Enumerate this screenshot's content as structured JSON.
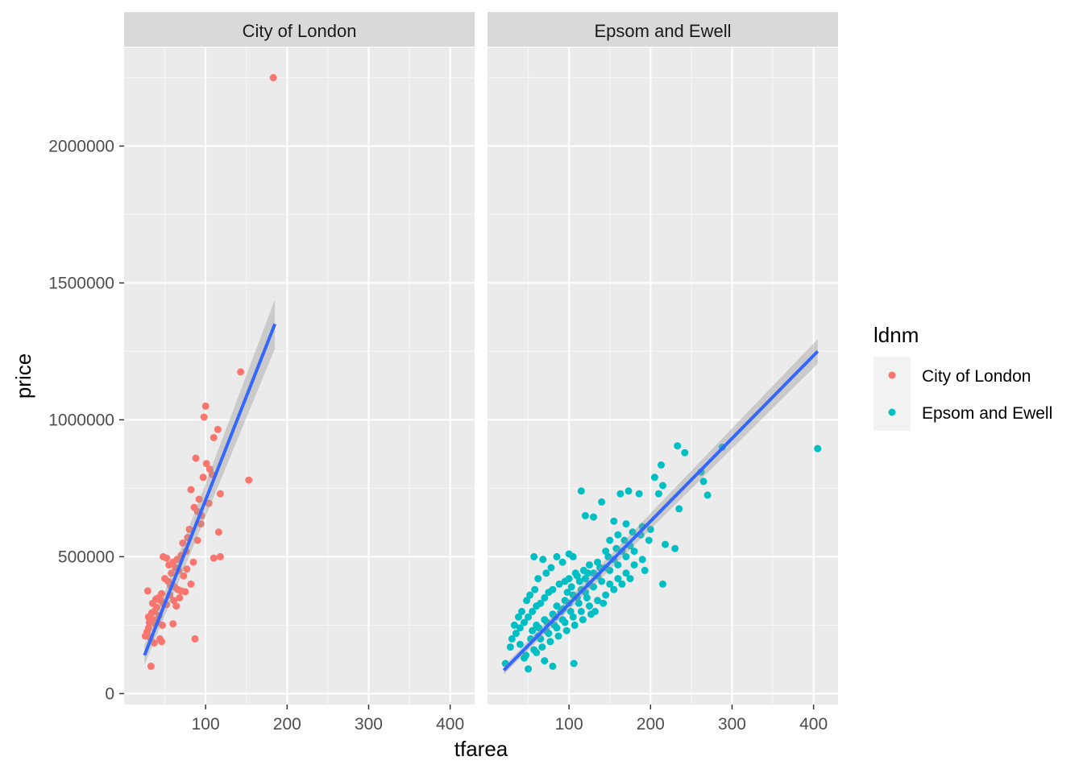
{
  "chart_data": {
    "type": "scatter",
    "facet_by": "ldnm",
    "xlabel": "tfarea",
    "ylabel": "price",
    "x_ticks": [
      100,
      200,
      300,
      400
    ],
    "y_ticks": [
      0,
      500000,
      1000000,
      1500000,
      2000000
    ],
    "x_tick_labels": [
      "100",
      "200",
      "300",
      "400"
    ],
    "y_tick_labels": [
      "0",
      "500000",
      "1000000",
      "1500000",
      "2000000"
    ],
    "xlim": [
      0,
      430
    ],
    "ylim": [
      -40000,
      2360000
    ],
    "grid": true,
    "background": "#ebebeb",
    "legend": {
      "title": "ldnm",
      "position": "right",
      "entries": [
        "City of London",
        "Epsom and Ewell"
      ]
    },
    "panels": [
      {
        "strip_label": "City of London",
        "color": "#f8766d",
        "smooth": {
          "method": "lm",
          "color": "#3366ff",
          "x": [
            25,
            185
          ],
          "y": [
            140000,
            1350000
          ],
          "se_halfwidth": [
            35000,
            90000
          ]
        },
        "points": [
          [
            183,
            2250000
          ],
          [
            143,
            1175000
          ],
          [
            100,
            1050000
          ],
          [
            98,
            1010000
          ],
          [
            115,
            965000
          ],
          [
            110,
            935000
          ],
          [
            153,
            780000
          ],
          [
            88,
            860000
          ],
          [
            101,
            840000
          ],
          [
            105,
            820000
          ],
          [
            108,
            800000
          ],
          [
            97,
            790000
          ],
          [
            82,
            745000
          ],
          [
            118,
            730000
          ],
          [
            92,
            710000
          ],
          [
            104,
            695000
          ],
          [
            86,
            680000
          ],
          [
            90,
            665000
          ],
          [
            116,
            590000
          ],
          [
            110,
            495000
          ],
          [
            118,
            500000
          ],
          [
            95,
            650000
          ],
          [
            80,
            600000
          ],
          [
            78,
            570000
          ],
          [
            72,
            550000
          ],
          [
            76,
            520000
          ],
          [
            70,
            505000
          ],
          [
            65,
            490000
          ],
          [
            60,
            480000
          ],
          [
            55,
            470000
          ],
          [
            48,
            500000
          ],
          [
            52,
            495000
          ],
          [
            63,
            460000
          ],
          [
            67,
            450000
          ],
          [
            58,
            440000
          ],
          [
            50,
            420000
          ],
          [
            54,
            410000
          ],
          [
            57,
            395000
          ],
          [
            62,
            390000
          ],
          [
            66,
            380000
          ],
          [
            70,
            375000
          ],
          [
            75,
            372000
          ],
          [
            82,
            400000
          ],
          [
            46,
            365000
          ],
          [
            42,
            350000
          ],
          [
            45,
            340000
          ],
          [
            48,
            330000
          ],
          [
            52,
            325000
          ],
          [
            40,
            315000
          ],
          [
            37,
            300000
          ],
          [
            34,
            295000
          ],
          [
            30,
            280000
          ],
          [
            36,
            270000
          ],
          [
            41,
            260000
          ],
          [
            47,
            250000
          ],
          [
            30,
            240000
          ],
          [
            28,
            225000
          ],
          [
            26,
            210000
          ],
          [
            32,
            205000
          ],
          [
            44,
            200000
          ],
          [
            46,
            190000
          ],
          [
            37,
            185000
          ],
          [
            87,
            200000
          ],
          [
            60,
            255000
          ],
          [
            33,
            100000
          ],
          [
            29,
            375000
          ],
          [
            35,
            330000
          ],
          [
            39,
            345000
          ],
          [
            56,
            360000
          ],
          [
            61,
            340000
          ],
          [
            64,
            320000
          ],
          [
            68,
            350000
          ],
          [
            73,
            430000
          ],
          [
            77,
            455000
          ],
          [
            85,
            480000
          ],
          [
            90,
            560000
          ],
          [
            94,
            620000
          ],
          [
            43,
            285000
          ],
          [
            38,
            255000
          ],
          [
            31,
            260000
          ]
        ]
      },
      {
        "strip_label": "Epsom and Ewell",
        "color": "#00bfc4",
        "smooth": {
          "method": "lm",
          "color": "#3366ff",
          "x": [
            20,
            405
          ],
          "y": [
            85000,
            1250000
          ],
          "se_halfwidth": [
            15000,
            45000
          ]
        },
        "points": [
          [
            405,
            895000
          ],
          [
            288,
            900000
          ],
          [
            233,
            905000
          ],
          [
            242,
            880000
          ],
          [
            265,
            775000
          ],
          [
            270,
            725000
          ],
          [
            262,
            810000
          ],
          [
            213,
            835000
          ],
          [
            205,
            790000
          ],
          [
            215,
            760000
          ],
          [
            210,
            730000
          ],
          [
            235,
            675000
          ],
          [
            173,
            740000
          ],
          [
            163,
            730000
          ],
          [
            186,
            730000
          ],
          [
            140,
            700000
          ],
          [
            115,
            740000
          ],
          [
            120,
            650000
          ],
          [
            130,
            645000
          ],
          [
            155,
            630000
          ],
          [
            170,
            620000
          ],
          [
            190,
            610000
          ],
          [
            198,
            560000
          ],
          [
            218,
            545000
          ],
          [
            230,
            530000
          ],
          [
            215,
            400000
          ],
          [
            193,
            450000
          ],
          [
            160,
            580000
          ],
          [
            150,
            560000
          ],
          [
            145,
            520000
          ],
          [
            135,
            480000
          ],
          [
            125,
            470000
          ],
          [
            118,
            450000
          ],
          [
            110,
            430000
          ],
          [
            100,
            420000
          ],
          [
            95,
            410000
          ],
          [
            88,
            400000
          ],
          [
            80,
            380000
          ],
          [
            75,
            370000
          ],
          [
            70,
            350000
          ],
          [
            65,
            330000
          ],
          [
            60,
            320000
          ],
          [
            55,
            300000
          ],
          [
            50,
            280000
          ],
          [
            45,
            260000
          ],
          [
            40,
            240000
          ],
          [
            35,
            220000
          ],
          [
            30,
            200000
          ],
          [
            28,
            170000
          ],
          [
            22,
            110000
          ],
          [
            57,
            500000
          ],
          [
            68,
            490000
          ],
          [
            85,
            500000
          ],
          [
            100,
            510000
          ],
          [
            105,
            500000
          ],
          [
            92,
            480000
          ],
          [
            78,
            460000
          ],
          [
            72,
            440000
          ],
          [
            62,
            420000
          ],
          [
            58,
            380000
          ],
          [
            52,
            360000
          ],
          [
            48,
            340000
          ],
          [
            42,
            300000
          ],
          [
            38,
            280000
          ],
          [
            33,
            250000
          ],
          [
            60,
            150000
          ],
          [
            70,
            120000
          ],
          [
            80,
            100000
          ],
          [
            106,
            110000
          ],
          [
            50,
            90000
          ],
          [
            45,
            130000
          ],
          [
            40,
            180000
          ],
          [
            65,
            200000
          ],
          [
            75,
            220000
          ],
          [
            85,
            240000
          ],
          [
            95,
            260000
          ],
          [
            105,
            280000
          ],
          [
            115,
            300000
          ],
          [
            125,
            320000
          ],
          [
            135,
            340000
          ],
          [
            145,
            360000
          ],
          [
            155,
            380000
          ],
          [
            165,
            400000
          ],
          [
            175,
            420000
          ],
          [
            90,
            300000
          ],
          [
            100,
            330000
          ],
          [
            110,
            350000
          ],
          [
            120,
            370000
          ],
          [
            130,
            390000
          ],
          [
            140,
            410000
          ],
          [
            80,
            290000
          ],
          [
            70,
            270000
          ],
          [
            60,
            250000
          ],
          [
            55,
            230000
          ],
          [
            85,
            320000
          ],
          [
            95,
            340000
          ],
          [
            105,
            360000
          ],
          [
            115,
            380000
          ],
          [
            125,
            400000
          ],
          [
            135,
            430000
          ],
          [
            150,
            450000
          ],
          [
            160,
            470000
          ],
          [
            170,
            500000
          ],
          [
            180,
            520000
          ],
          [
            145,
            460000
          ],
          [
            155,
            490000
          ],
          [
            165,
            520000
          ],
          [
            175,
            540000
          ],
          [
            120,
            420000
          ],
          [
            130,
            440000
          ],
          [
            112,
            330000
          ],
          [
            102,
            300000
          ],
          [
            92,
            270000
          ],
          [
            82,
            250000
          ],
          [
            72,
            230000
          ],
          [
            62,
            210000
          ],
          [
            97,
            230000
          ],
          [
            107,
            250000
          ],
          [
            117,
            270000
          ],
          [
            127,
            290000
          ],
          [
            87,
            210000
          ],
          [
            77,
            190000
          ],
          [
            67,
            170000
          ],
          [
            57,
            160000
          ],
          [
            47,
            140000
          ],
          [
            53,
            200000
          ],
          [
            63,
            240000
          ],
          [
            73,
            260000
          ],
          [
            83,
            280000
          ],
          [
            93,
            310000
          ],
          [
            103,
            390000
          ],
          [
            113,
            410000
          ],
          [
            123,
            440000
          ],
          [
            138,
            460000
          ],
          [
            148,
            500000
          ],
          [
            158,
            530000
          ],
          [
            168,
            560000
          ],
          [
            178,
            590000
          ],
          [
            188,
            580000
          ],
          [
            200,
            600000
          ],
          [
            150,
            400000
          ],
          [
            160,
            420000
          ],
          [
            170,
            440000
          ],
          [
            180,
            470000
          ],
          [
            190,
            490000
          ],
          [
            132,
            300000
          ],
          [
            142,
            330000
          ],
          [
            122,
            350000
          ],
          [
            98,
            370000
          ],
          [
            108,
            440000
          ]
        ]
      }
    ]
  }
}
